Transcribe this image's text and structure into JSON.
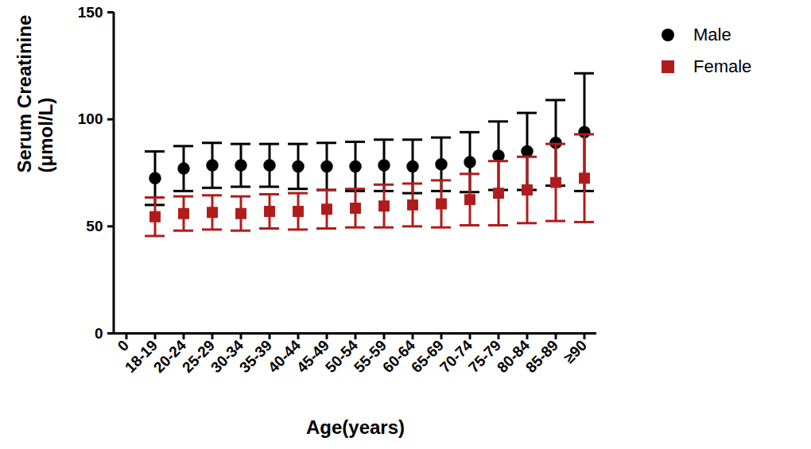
{
  "chart_data": {
    "type": "scatter",
    "x_label": "Age(years)",
    "y_label": "Serum Creatinine\n(μmol/L)",
    "categories": [
      "0",
      "18-19",
      "20-24",
      "25-29",
      "30-34",
      "35-39",
      "40-44",
      "45-49",
      "50-54",
      "55-59",
      "60-64",
      "65-69",
      "70-74",
      "75-79",
      "80-84",
      "85-89",
      "≥90"
    ],
    "series": [
      {
        "name": "Male",
        "color": "#000000",
        "marker": "circle",
        "values": [
          null,
          72.5,
          77,
          78.5,
          78.5,
          78.5,
          78,
          78,
          78,
          78.5,
          78,
          79,
          80,
          83,
          85,
          89,
          94
        ],
        "errors": [
          null,
          12.5,
          10.5,
          10.5,
          10,
          10,
          10.5,
          11,
          11.5,
          12,
          12.5,
          12.5,
          14,
          16,
          18,
          20,
          27.5
        ]
      },
      {
        "name": "Female",
        "color": "#b01c1c",
        "marker": "square",
        "values": [
          null,
          54.5,
          56,
          56.5,
          56,
          57,
          57,
          58,
          58.5,
          59.5,
          60,
          60.5,
          62.5,
          65.5,
          67,
          70.5,
          72.5
        ],
        "errors": [
          null,
          9,
          8,
          8,
          8,
          8,
          8.5,
          9,
          9,
          10,
          10,
          11,
          12,
          15,
          15.5,
          18,
          20.5
        ]
      }
    ],
    "ylim": [
      0,
      150
    ],
    "yticks": [
      0,
      50,
      100,
      150
    ],
    "legend": "right"
  }
}
